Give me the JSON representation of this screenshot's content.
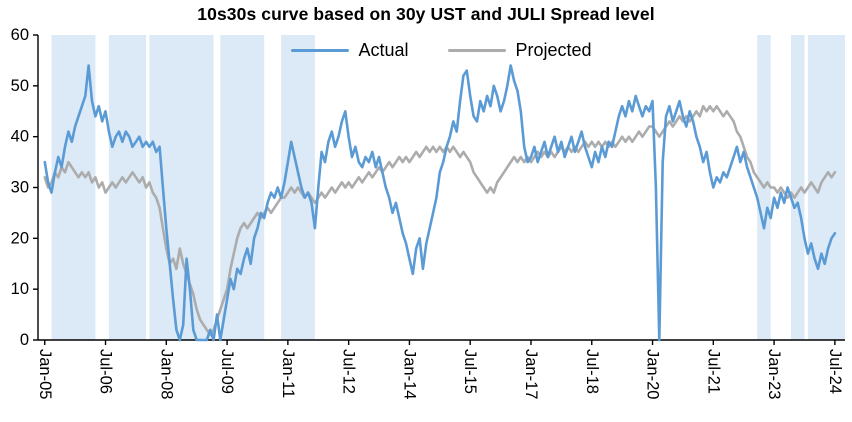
{
  "chart_data": {
    "type": "line",
    "title": "10s30s curve based on 30y UST and JULI Spread level",
    "grid": false,
    "legend_position": "top-center-inside",
    "ylim": [
      0,
      60
    ],
    "y_ticks": [
      0,
      10,
      20,
      30,
      40,
      50,
      60
    ],
    "x_start_month": "Jan-2005",
    "x_months_range": [
      -2,
      237
    ],
    "x_tick_months": [
      0,
      18,
      36,
      54,
      72,
      90,
      108,
      126,
      144,
      162,
      180,
      198,
      216,
      234
    ],
    "x_tick_labels": [
      "Jan-05",
      "Jul-06",
      "Jan-08",
      "Jul-09",
      "Jan-11",
      "Jul-12",
      "Jan-14",
      "Jul-15",
      "Jan-17",
      "Jul-18",
      "Jan-20",
      "Jul-21",
      "Jan-23",
      "Jul-24"
    ],
    "band_color": "#dce9f6",
    "shaded_bands_months": [
      [
        2,
        15
      ],
      [
        19,
        30
      ],
      [
        31,
        50
      ],
      [
        52,
        65
      ],
      [
        70,
        80
      ],
      [
        211,
        215
      ],
      [
        221,
        225
      ],
      [
        226,
        237
      ]
    ],
    "series": [
      {
        "name": "Actual",
        "color": "#5b9bd5",
        "values": [
          35,
          31,
          29,
          33,
          36,
          34,
          38,
          41,
          39,
          42,
          44,
          46,
          48,
          54,
          47,
          44,
          46,
          43,
          45,
          41,
          38,
          40,
          41,
          39,
          41,
          40,
          38,
          39,
          40,
          38,
          39,
          38,
          39,
          37,
          38,
          30,
          22,
          15,
          8,
          2,
          0,
          3,
          16,
          10,
          2,
          0,
          0,
          0,
          0,
          2,
          0,
          5,
          0,
          4,
          8,
          12,
          10,
          14,
          13,
          16,
          18,
          15,
          20,
          22,
          25,
          24,
          27,
          29,
          28,
          30,
          28,
          31,
          35,
          39,
          36,
          33,
          30,
          28,
          29,
          27,
          22,
          30,
          37,
          35,
          39,
          41,
          38,
          40,
          43,
          45,
          40,
          36,
          38,
          35,
          34,
          36,
          35,
          37,
          34,
          36,
          33,
          30,
          28,
          25,
          27,
          24,
          21,
          19,
          16,
          13,
          18,
          20,
          14,
          19,
          22,
          25,
          28,
          33,
          35,
          38,
          40,
          43,
          41,
          47,
          52,
          53,
          48,
          44,
          43,
          47,
          45,
          48,
          46,
          50,
          48,
          45,
          47,
          50,
          54,
          51,
          49,
          45,
          38,
          35,
          36,
          38,
          35,
          37,
          39,
          36,
          38,
          40,
          37,
          39,
          36,
          38,
          40,
          37,
          39,
          41,
          38,
          36,
          34,
          37,
          35,
          38,
          36,
          39,
          38,
          41,
          44,
          46,
          44,
          47,
          45,
          48,
          46,
          44,
          46,
          45,
          47,
          30,
          0,
          35,
          44,
          46,
          43,
          45,
          47,
          44,
          42,
          45,
          43,
          40,
          38,
          35,
          37,
          33,
          30,
          32,
          31,
          33,
          32,
          34,
          36,
          38,
          35,
          37,
          34,
          32,
          30,
          28,
          25,
          22,
          26,
          24,
          28,
          26,
          29,
          27,
          30,
          28,
          26,
          27,
          24,
          20,
          17,
          19,
          16,
          14,
          17,
          15,
          18,
          20,
          21
        ]
      },
      {
        "name": "Projected",
        "color": "#acacac",
        "values": [
          32,
          30,
          31,
          33,
          32,
          34,
          33,
          35,
          34,
          33,
          32,
          33,
          32,
          33,
          31,
          32,
          30,
          31,
          29,
          30,
          31,
          30,
          31,
          32,
          31,
          32,
          33,
          32,
          31,
          32,
          30,
          31,
          29,
          28,
          26,
          22,
          18,
          15,
          16,
          14,
          18,
          15,
          13,
          11,
          9,
          6,
          4,
          3,
          2,
          1,
          2,
          4,
          6,
          8,
          10,
          14,
          17,
          20,
          22,
          23,
          22,
          23,
          24,
          25,
          24,
          25,
          26,
          25,
          26,
          27,
          28,
          28,
          29,
          30,
          29,
          30,
          29,
          28,
          29,
          28,
          27,
          28,
          29,
          28,
          29,
          30,
          29,
          30,
          31,
          30,
          31,
          30,
          31,
          32,
          31,
          32,
          33,
          32,
          33,
          34,
          33,
          34,
          35,
          34,
          35,
          36,
          35,
          36,
          35,
          36,
          37,
          36,
          37,
          38,
          37,
          38,
          37,
          38,
          37,
          38,
          37,
          38,
          37,
          36,
          37,
          36,
          35,
          33,
          32,
          31,
          30,
          29,
          30,
          29,
          31,
          32,
          33,
          34,
          35,
          36,
          35,
          36,
          35,
          36,
          35,
          36,
          37,
          36,
          37,
          36,
          37,
          36,
          37,
          38,
          37,
          38,
          37,
          38,
          37,
          38,
          39,
          38,
          39,
          38,
          39,
          38,
          39,
          38,
          39,
          38,
          39,
          40,
          39,
          40,
          39,
          40,
          41,
          40,
          41,
          42,
          42,
          41,
          40,
          41,
          42,
          43,
          42,
          43,
          44,
          43,
          44,
          43,
          44,
          45,
          44,
          46,
          45,
          46,
          45,
          46,
          45,
          44,
          45,
          44,
          43,
          41,
          40,
          38,
          36,
          35,
          33,
          32,
          31,
          30,
          31,
          30,
          30,
          29,
          30,
          29,
          28,
          29,
          28,
          29,
          30,
          29,
          30,
          31,
          30,
          29,
          31,
          32,
          33,
          32,
          33
        ]
      }
    ]
  }
}
